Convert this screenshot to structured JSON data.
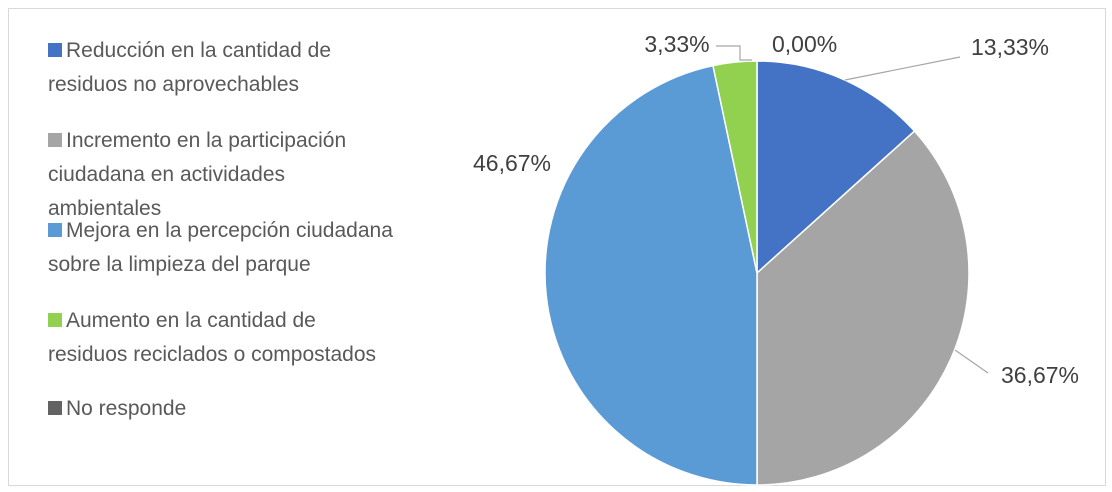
{
  "chart_data": {
    "type": "pie",
    "categories": [
      "Reducción en la cantidad de residuos no aprovechables",
      "Incremento en la participación ciudadana en actividades ambientales",
      "Mejora en la percepción ciudadana sobre la limpieza del parque",
      "Aumento en la cantidad de residuos reciclados o compostados",
      "No responde"
    ],
    "values": [
      13.33,
      36.67,
      46.67,
      3.33,
      0.0
    ],
    "value_labels": [
      "13,33%",
      "36,67%",
      "46,67%",
      "3,33%",
      "0,00%"
    ],
    "colors": [
      "#4472c4",
      "#a5a5a5",
      "#5b9bd5",
      "#92d050",
      "#636363"
    ],
    "legend": "left"
  }
}
